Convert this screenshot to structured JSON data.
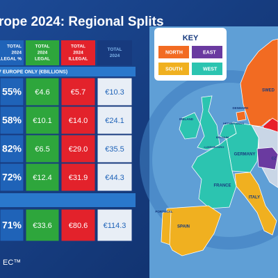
{
  "title": "rope 2024: Regional Splits",
  "table": {
    "columns": [
      [
        "TOTAL",
        "2024",
        "ILLEGAL %"
      ],
      [
        "TOTAL",
        "2024",
        "LEGAL"
      ],
      [
        "TOTAL",
        "2024",
        "ILLEGAL"
      ],
      [
        "TOTAL",
        "2024"
      ]
    ],
    "section": "7 EUROPE ONLY (€BILLIONS)",
    "rows": [
      [
        "55%",
        "€4.6",
        "€5.7",
        "€10.3"
      ],
      [
        "58%",
        "€10.1",
        "€14.0",
        "€24.1"
      ],
      [
        "82%",
        "€6.5",
        "€29.0",
        "€35.5"
      ],
      [
        "72%",
        "€12.4",
        "€31.9",
        "€44.3"
      ]
    ],
    "total": [
      "71%",
      "€33.6",
      "€80.6",
      "€114.3"
    ]
  },
  "footer": "EC™",
  "map": {
    "key_title": "KEY",
    "key": [
      "NORTH",
      "EAST",
      "SOUTH",
      "WEST"
    ],
    "labels": [
      "SWED",
      "DENMARK",
      "IRELAND",
      "NETHERLANDS",
      "BELGIUM",
      "LUXEMBOURG",
      "GERMANY",
      "CZ",
      "FRANCE",
      "ITALY",
      "PORTUGAL",
      "SPAIN"
    ]
  }
}
